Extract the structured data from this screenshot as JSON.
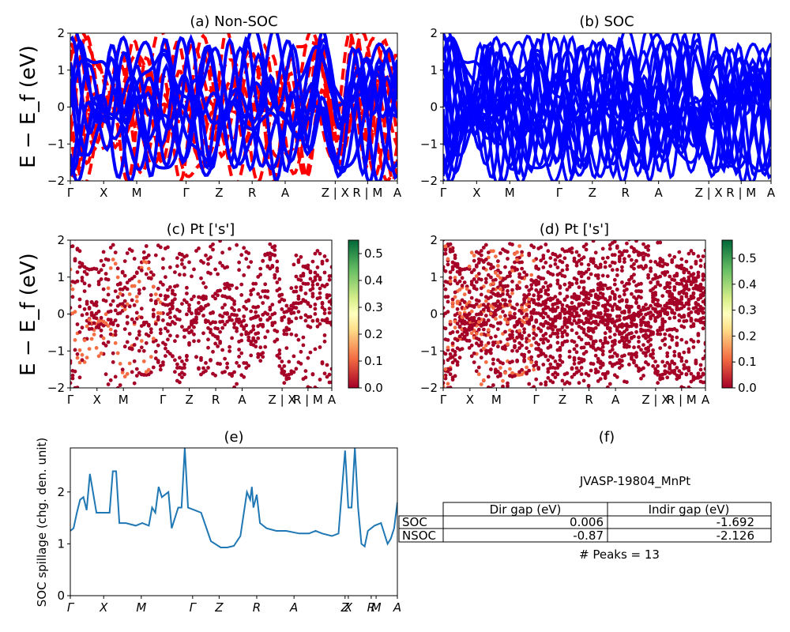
{
  "chart_data": [
    {
      "panel": "a",
      "type": "line",
      "title": "(a) Non-SOC",
      "ylabel": "E − E_f (eV)",
      "ylim": [
        -2,
        2
      ],
      "yticks": [
        "−2",
        "−1",
        "0",
        "1",
        "2"
      ],
      "xticks": [
        "Γ",
        "X",
        "M",
        "Γ",
        "Z",
        "R",
        "A",
        "Z | X",
        "R | M",
        "A"
      ],
      "series": [
        {
          "color": "#ff0000",
          "style": "dashed"
        },
        {
          "color": "#0000ff",
          "style": "solid"
        }
      ]
    },
    {
      "panel": "b",
      "type": "line",
      "title": "(b) SOC",
      "ylim": [
        -2,
        2
      ],
      "yticks": [
        "−2",
        "−1",
        "0",
        "1",
        "2"
      ],
      "xticks": [
        "Γ",
        "X",
        "M",
        "Γ",
        "Z",
        "R",
        "A",
        "Z | X",
        "R | M",
        "A"
      ],
      "series": [
        {
          "color": "#0000ff",
          "style": "solid"
        }
      ]
    },
    {
      "panel": "c",
      "type": "scatter",
      "title": "(c)  Pt ['s']",
      "ylabel": "E − E_f (eV)",
      "ylim": [
        -2,
        2
      ],
      "yticks": [
        "−2",
        "−1",
        "0",
        "1",
        "2"
      ],
      "xticks": [
        "Γ",
        "X",
        "M",
        "Γ",
        "Z",
        "R",
        "A",
        "Z | X",
        "R | M",
        "A"
      ],
      "colorbar": {
        "min": 0.0,
        "max": 0.55,
        "ticks": [
          "0.0",
          "0.1",
          "0.2",
          "0.3",
          "0.4",
          "0.5"
        ],
        "colormap": "RdYlGn"
      }
    },
    {
      "panel": "d",
      "type": "scatter",
      "title": "(d) Pt ['s']",
      "ylim": [
        -2,
        2
      ],
      "yticks": [
        "−2",
        "−1",
        "0",
        "1",
        "2"
      ],
      "xticks": [
        "Γ",
        "X",
        "M",
        "Γ",
        "Z",
        "R",
        "A",
        "Z | X",
        "R | M",
        "A"
      ],
      "colorbar": {
        "min": 0.0,
        "max": 0.57,
        "ticks": [
          "0.0",
          "0.1",
          "0.2",
          "0.3",
          "0.4",
          "0.5"
        ],
        "colormap": "RdYlGn"
      }
    },
    {
      "panel": "e",
      "type": "line",
      "title": "(e)",
      "ylabel": "SOC spillage (chg. den. unit)",
      "ylim": [
        0,
        2.85
      ],
      "yticks": [
        "0",
        "1",
        "2"
      ],
      "xticks": [
        "Γ",
        "X",
        "M",
        "Γ",
        "Z",
        "R",
        "A",
        "Z",
        "X",
        "R",
        "M",
        "A"
      ],
      "color": "#1f77b4",
      "x": [
        0.0,
        0.01,
        0.02,
        0.03,
        0.04,
        0.05,
        0.06,
        0.08,
        0.1,
        0.12,
        0.13,
        0.14,
        0.15,
        0.16,
        0.17,
        0.2,
        0.22,
        0.24,
        0.25,
        0.26,
        0.27,
        0.28,
        0.3,
        0.31,
        0.32,
        0.33,
        0.34,
        0.35,
        0.36,
        0.38,
        0.4,
        0.43,
        0.46,
        0.48,
        0.5,
        0.52,
        0.54,
        0.55,
        0.555,
        0.56,
        0.57,
        0.58,
        0.6,
        0.63,
        0.66,
        0.7,
        0.73,
        0.75,
        0.77,
        0.8,
        0.82,
        0.84,
        0.85,
        0.86,
        0.87,
        0.88,
        0.89,
        0.9,
        0.91,
        0.92,
        0.93,
        0.95,
        0.97,
        0.98,
        0.99,
        1.0
      ],
      "y": [
        1.25,
        1.3,
        1.6,
        1.85,
        1.9,
        1.65,
        2.35,
        1.6,
        1.6,
        1.6,
        2.4,
        2.4,
        1.4,
        1.4,
        1.4,
        1.35,
        1.4,
        1.35,
        1.7,
        1.6,
        2.1,
        1.9,
        2.0,
        1.3,
        1.5,
        1.7,
        1.7,
        2.85,
        1.7,
        1.65,
        1.6,
        1.05,
        0.93,
        0.93,
        0.96,
        1.15,
        2.0,
        1.85,
        2.1,
        1.7,
        1.95,
        1.4,
        1.3,
        1.25,
        1.25,
        1.2,
        1.2,
        1.25,
        1.2,
        1.15,
        1.2,
        2.8,
        1.7,
        1.7,
        2.85,
        1.7,
        1.0,
        0.95,
        1.25,
        1.3,
        1.35,
        1.4,
        1.0,
        1.1,
        1.3,
        1.8
      ]
    }
  ],
  "info": {
    "title": "(f)",
    "material": "JVASP-19804_MnPt",
    "table": {
      "headers": [
        "",
        "Dir gap (eV)",
        "Indir gap (eV)"
      ],
      "rows": [
        [
          "SOC",
          "0.006",
          "-1.692"
        ],
        [
          "NSOC",
          "-0.87",
          "-2.126"
        ]
      ]
    },
    "peaks": "# Peaks = 13"
  }
}
